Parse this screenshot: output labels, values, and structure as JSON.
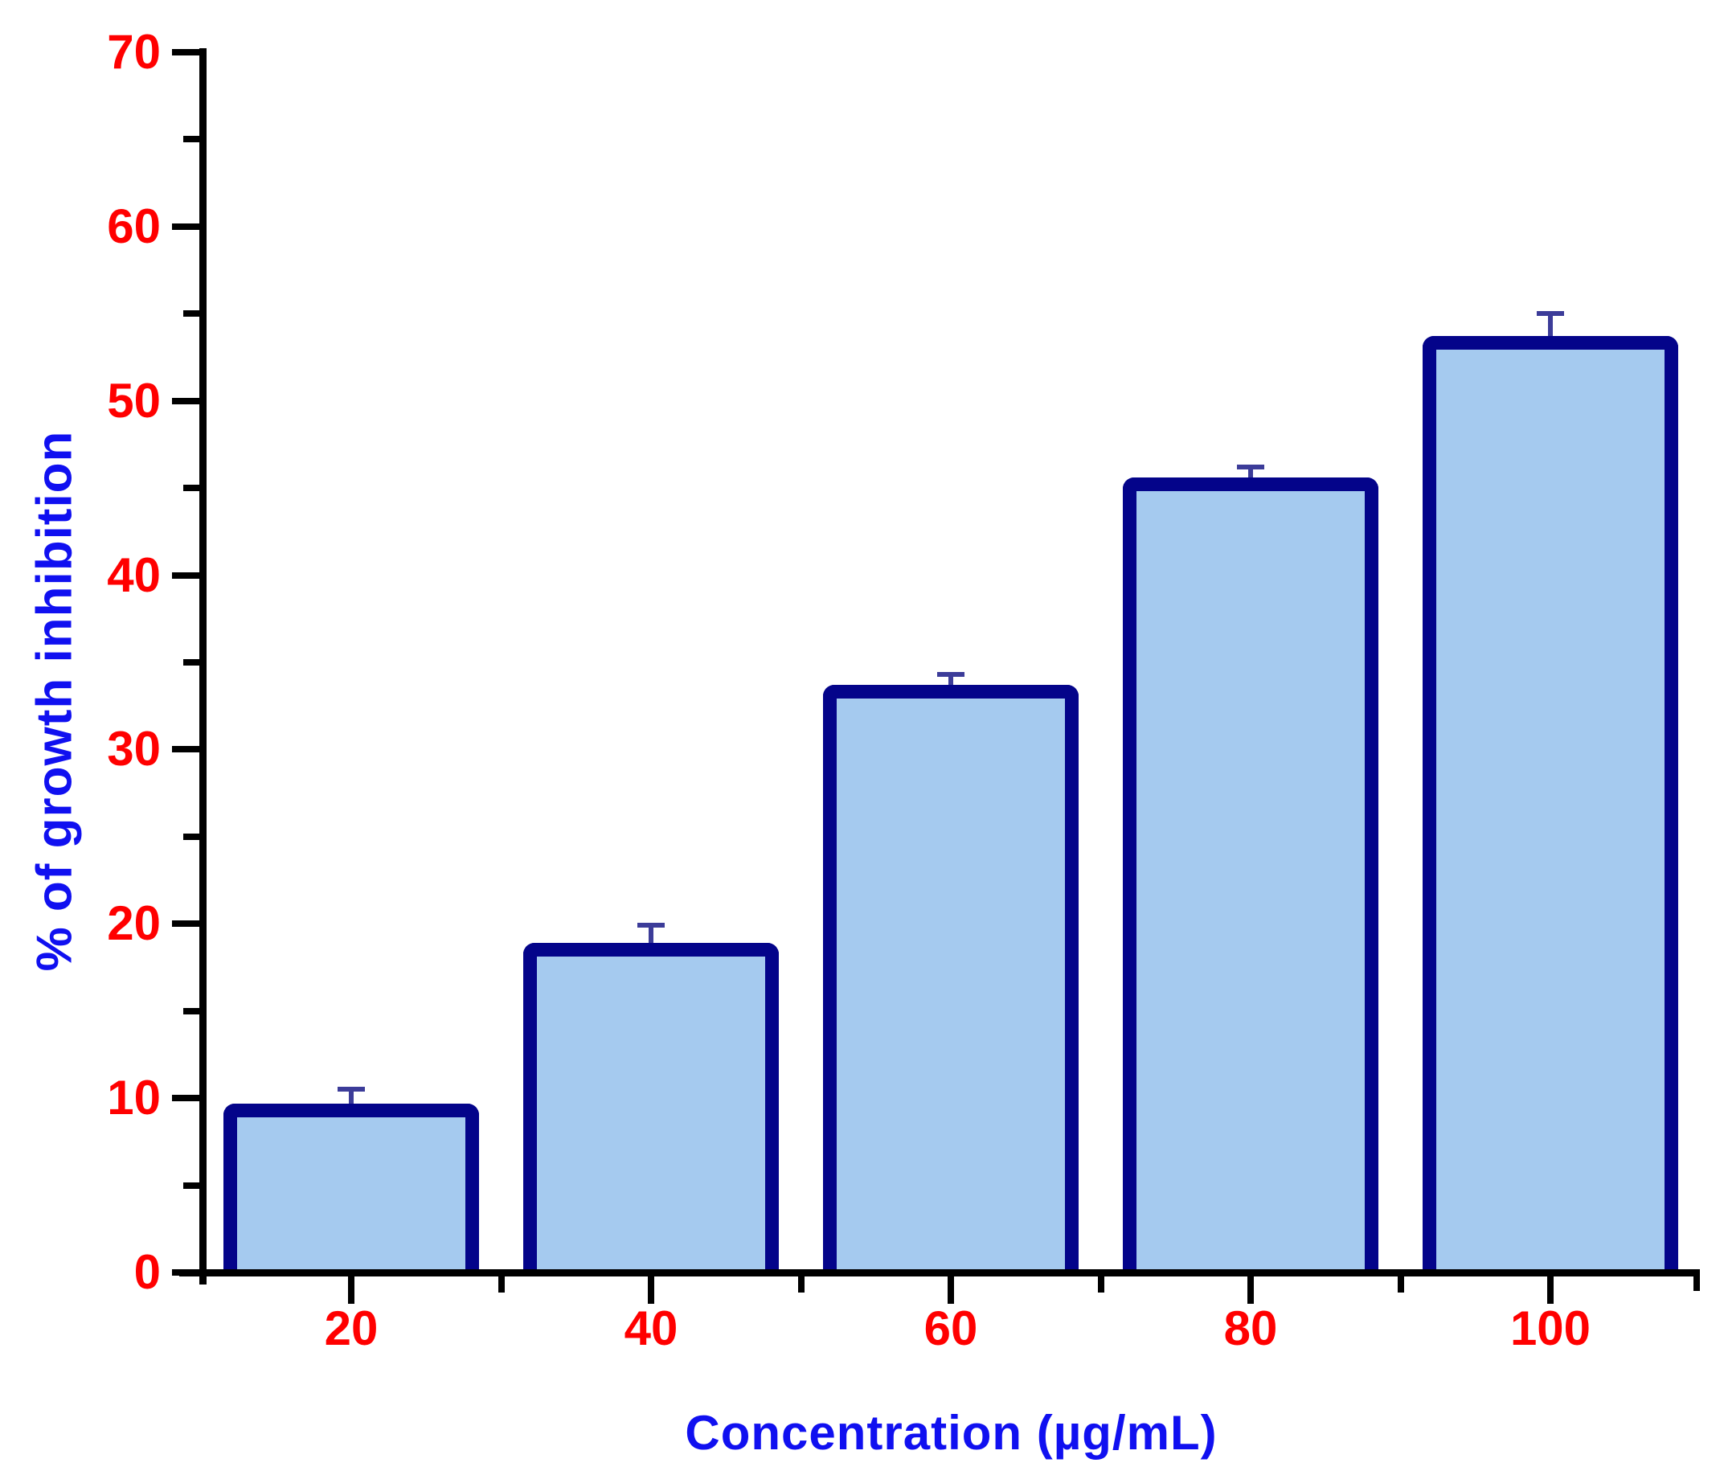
{
  "chart_data": {
    "type": "bar",
    "title": "",
    "xlabel": "Concentration (µg/mL)",
    "ylabel": "% of growth inhibition",
    "categories": [
      "20",
      "40",
      "60",
      "80",
      "100"
    ],
    "values": [
      9.7,
      18.9,
      33.7,
      45.6,
      53.7
    ],
    "error_plus": [
      0.8,
      1.0,
      0.6,
      0.6,
      1.3
    ],
    "ylim": [
      0,
      70
    ],
    "yticks_major": [
      0,
      10,
      20,
      30,
      40,
      50,
      60,
      70
    ],
    "ytick_labels": [
      "0",
      "10",
      "20",
      "30",
      "40",
      "50",
      "60",
      "70"
    ],
    "yticks_minor": [
      5,
      15,
      25,
      35,
      45,
      55,
      65
    ],
    "grid": false,
    "legend_position": "none",
    "bar_fill": "#A5CAEF",
    "bar_border": "#04048A",
    "error_color": "#3C3C99",
    "tick_label_color": "#FF0000",
    "axis_title_color": "#1010F0",
    "axis_color": "#000000"
  }
}
